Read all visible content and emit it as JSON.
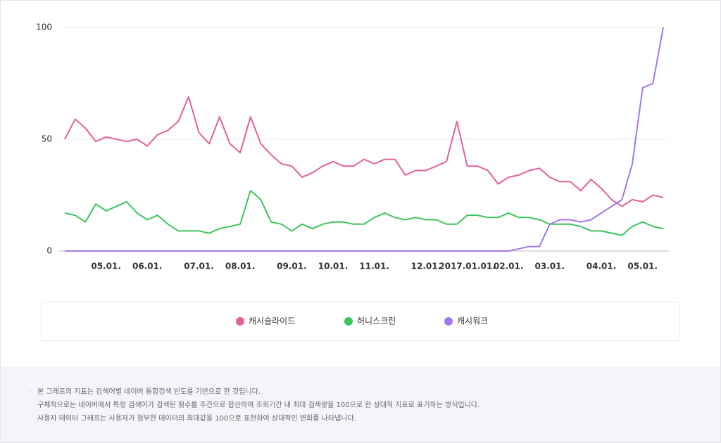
{
  "chart_data": {
    "type": "line",
    "categories": [
      null,
      null,
      null,
      null,
      "05.01.",
      null,
      null,
      null,
      "06.01.",
      null,
      null,
      null,
      null,
      "07.01.",
      null,
      null,
      null,
      "08.01.",
      null,
      null,
      null,
      null,
      "09.01.",
      null,
      null,
      null,
      "10.01.",
      null,
      null,
      null,
      "11.01.",
      null,
      null,
      null,
      null,
      "12.01.",
      null,
      null,
      null,
      "2017.01.01.",
      null,
      null,
      null,
      "02.01.",
      null,
      null,
      null,
      "03.01.",
      null,
      null,
      null,
      null,
      "04.01.",
      null,
      null,
      null,
      "05.01.",
      null,
      null
    ],
    "series": [
      {
        "name": "캐시슬라이드",
        "color": "#e0619c",
        "values": [
          50,
          59,
          55,
          49,
          51,
          50,
          49,
          50,
          47,
          52,
          54,
          58,
          69,
          53,
          48,
          60,
          48,
          44,
          60,
          48,
          43,
          39,
          38,
          33,
          35,
          38,
          40,
          38,
          38,
          41,
          39,
          41,
          41,
          34,
          36,
          36,
          38,
          40,
          58,
          38,
          38,
          36,
          30,
          33,
          34,
          36,
          37,
          33,
          31,
          31,
          27,
          32,
          28,
          23,
          20,
          23,
          22,
          25,
          24
        ]
      },
      {
        "name": "허니스크린",
        "color": "#3cc45c",
        "values": [
          17,
          16,
          13,
          21,
          18,
          20,
          22,
          17,
          14,
          16,
          12,
          9,
          9,
          9,
          8,
          10,
          11,
          12,
          27,
          23,
          13,
          12,
          9,
          12,
          10,
          12,
          13,
          13,
          12,
          12,
          15,
          17,
          15,
          14,
          15,
          14,
          14,
          12,
          12,
          16,
          16,
          15,
          15,
          17,
          15,
          15,
          14,
          12,
          12,
          12,
          11,
          9,
          9,
          8,
          7,
          11,
          13,
          11,
          10
        ]
      },
      {
        "name": "캐시워크",
        "color": "#a477e6",
        "values": [
          0,
          0,
          0,
          0,
          0,
          0,
          0,
          0,
          0,
          0,
          0,
          0,
          0,
          0,
          0,
          0,
          0,
          0,
          0,
          0,
          0,
          0,
          0,
          0,
          0,
          0,
          0,
          0,
          0,
          0,
          0,
          0,
          0,
          0,
          0,
          0,
          0,
          0,
          0,
          0,
          0,
          0,
          0,
          0,
          1,
          2,
          2,
          12,
          14,
          14,
          13,
          14,
          17,
          20,
          23,
          39,
          73,
          75,
          100
        ]
      }
    ],
    "ylim": [
      0,
      100
    ],
    "yticks": [
      0,
      50,
      100
    ],
    "grid": true,
    "notes": [
      "본 그래프의 지표는 검색어별 네이버 통합검색 빈도를 기반으로 한 것입니다.",
      "구체적으로는 네이버에서 특정 검색어가 검색된 횟수를 주간으로 합산하여 조회기간 내 최대 검색량을 100으로 한 상대적 지표로 표기하는 방식입니다.",
      "사용자 데이터 그래프는 사용자가 첨부한 데이터의 최대값을 100으로 표현하여 상대적인 변화를 나타냅니다."
    ]
  }
}
